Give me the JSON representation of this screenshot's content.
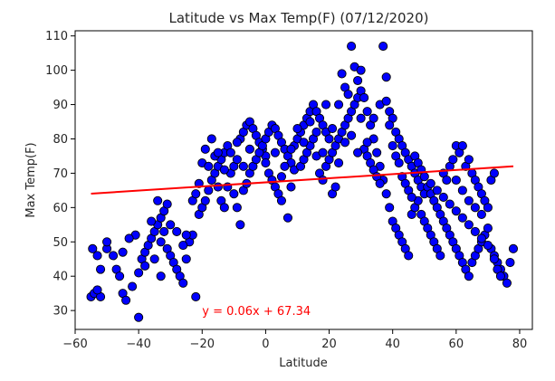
{
  "chart_data": {
    "type": "scatter",
    "title": "Latitude vs Max Temp(F) (07/12/2020)",
    "xlabel": "Latitude",
    "ylabel": "Max Temp(F)",
    "xlim": [
      -60,
      84
    ],
    "ylim": [
      24.5,
      111.5
    ],
    "xticks": [
      -60,
      -40,
      -20,
      0,
      20,
      40,
      60,
      80
    ],
    "xtick_labels": [
      "−60",
      "−40",
      "−20",
      "0",
      "20",
      "40",
      "60",
      "80"
    ],
    "yticks": [
      30,
      40,
      50,
      60,
      70,
      80,
      90,
      100,
      110
    ],
    "ytick_labels": [
      "30",
      "40",
      "50",
      "60",
      "70",
      "80",
      "90",
      "100",
      "110"
    ],
    "grid": false,
    "marker_color": "#0000ff",
    "marker_edge_color": "#000000",
    "regression": {
      "slope": 0.06,
      "intercept": 67.34,
      "x_range": [
        -55,
        78
      ],
      "color": "#ff0000",
      "label": "y = 0.06x + 67.34",
      "label_at": [
        -20,
        30
      ]
    },
    "points": [
      [
        -55,
        34
      ],
      [
        -54,
        35
      ],
      [
        -52,
        34
      ],
      [
        -53,
        36
      ],
      [
        -54.5,
        48
      ],
      [
        -53,
        46
      ],
      [
        -52,
        42
      ],
      [
        -50,
        48
      ],
      [
        -50,
        50
      ],
      [
        -48,
        46
      ],
      [
        -47,
        42
      ],
      [
        -46,
        40
      ],
      [
        -45,
        35
      ],
      [
        -44,
        33
      ],
      [
        -42,
        37
      ],
      [
        -41,
        52
      ],
      [
        -40,
        28
      ],
      [
        -40,
        41
      ],
      [
        -39,
        45
      ],
      [
        -38,
        47
      ],
      [
        -37,
        49
      ],
      [
        -36,
        51
      ],
      [
        -35,
        53
      ],
      [
        -34,
        55
      ],
      [
        -33,
        57
      ],
      [
        -32,
        59
      ],
      [
        -31,
        61
      ],
      [
        -34,
        62
      ],
      [
        -33,
        50
      ],
      [
        -32,
        53
      ],
      [
        -31,
        48
      ],
      [
        -30,
        46
      ],
      [
        -29,
        44
      ],
      [
        -28,
        42
      ],
      [
        -27,
        40
      ],
      [
        -26,
        38
      ],
      [
        -25,
        45
      ],
      [
        -24,
        50
      ],
      [
        -23,
        52
      ],
      [
        -22,
        34
      ],
      [
        -21,
        58
      ],
      [
        -20,
        60
      ],
      [
        -19,
        62
      ],
      [
        -18,
        65
      ],
      [
        -17,
        68
      ],
      [
        -16,
        70
      ],
      [
        -15,
        72
      ],
      [
        -14,
        74
      ],
      [
        -13,
        76
      ],
      [
        -12,
        78
      ],
      [
        -20,
        73
      ],
      [
        -19,
        77
      ],
      [
        -17,
        80
      ],
      [
        -16,
        75
      ],
      [
        -15,
        66
      ],
      [
        -14,
        62
      ],
      [
        -13,
        60
      ],
      [
        -12,
        66
      ],
      [
        -11,
        70
      ],
      [
        -10,
        72
      ],
      [
        -9,
        74
      ],
      [
        -8,
        80
      ],
      [
        -7,
        82
      ],
      [
        -6,
        84
      ],
      [
        -5,
        85
      ],
      [
        -4,
        83
      ],
      [
        -3,
        81
      ],
      [
        -2,
        79
      ],
      [
        -1,
        77
      ],
      [
        0,
        75
      ],
      [
        -10,
        64
      ],
      [
        -9,
        60
      ],
      [
        -8,
        55
      ],
      [
        -7,
        65
      ],
      [
        -6,
        67
      ],
      [
        -5,
        70
      ],
      [
        -4,
        72
      ],
      [
        -3,
        74
      ],
      [
        -2,
        76
      ],
      [
        -1,
        78
      ],
      [
        0,
        80
      ],
      [
        1,
        82
      ],
      [
        2,
        84
      ],
      [
        3,
        83
      ],
      [
        4,
        81
      ],
      [
        5,
        79
      ],
      [
        6,
        77
      ],
      [
        7,
        75
      ],
      [
        8,
        73
      ],
      [
        9,
        71
      ],
      [
        1,
        70
      ],
      [
        2,
        68
      ],
      [
        3,
        66
      ],
      [
        4,
        64
      ],
      [
        5,
        62
      ],
      [
        6,
        72
      ],
      [
        7,
        57
      ],
      [
        8,
        66
      ],
      [
        9,
        78
      ],
      [
        10,
        80
      ],
      [
        11,
        82
      ],
      [
        12,
        84
      ],
      [
        13,
        86
      ],
      [
        14,
        88
      ],
      [
        15,
        90
      ],
      [
        16,
        88
      ],
      [
        17,
        86
      ],
      [
        18,
        84
      ],
      [
        19,
        82
      ],
      [
        20,
        80
      ],
      [
        11,
        72
      ],
      [
        12,
        74
      ],
      [
        13,
        76
      ],
      [
        14,
        78
      ],
      [
        15,
        80
      ],
      [
        16,
        75
      ],
      [
        17,
        70
      ],
      [
        18,
        68
      ],
      [
        19,
        72
      ],
      [
        20,
        74
      ],
      [
        21,
        76
      ],
      [
        22,
        78
      ],
      [
        23,
        80
      ],
      [
        24,
        82
      ],
      [
        25,
        84
      ],
      [
        26,
        86
      ],
      [
        27,
        88
      ],
      [
        28,
        90
      ],
      [
        29,
        92
      ],
      [
        30,
        94
      ],
      [
        21,
        64
      ],
      [
        22,
        66
      ],
      [
        23,
        90
      ],
      [
        24,
        99
      ],
      [
        25,
        95
      ],
      [
        26,
        93
      ],
      [
        27,
        107
      ],
      [
        28,
        101
      ],
      [
        29,
        97
      ],
      [
        30,
        100
      ],
      [
        31,
        92
      ],
      [
        32,
        88
      ],
      [
        33,
        84
      ],
      [
        34,
        80
      ],
      [
        35,
        76
      ],
      [
        36,
        72
      ],
      [
        37,
        68
      ],
      [
        38,
        64
      ],
      [
        39,
        60
      ],
      [
        40,
        56
      ],
      [
        31,
        77
      ],
      [
        32,
        75
      ],
      [
        33,
        73
      ],
      [
        34,
        71
      ],
      [
        35,
        69
      ],
      [
        36,
        67
      ],
      [
        37,
        107
      ],
      [
        38,
        98
      ],
      [
        39,
        88
      ],
      [
        40,
        86
      ],
      [
        41,
        82
      ],
      [
        42,
        80
      ],
      [
        43,
        78
      ],
      [
        44,
        76
      ],
      [
        45,
        74
      ],
      [
        46,
        72
      ],
      [
        47,
        70
      ],
      [
        48,
        68
      ],
      [
        49,
        66
      ],
      [
        50,
        64
      ],
      [
        41,
        54
      ],
      [
        42,
        52
      ],
      [
        43,
        50
      ],
      [
        44,
        48
      ],
      [
        45,
        46
      ],
      [
        46,
        58
      ],
      [
        47,
        60
      ],
      [
        48,
        62
      ],
      [
        49,
        58
      ],
      [
        50,
        56
      ],
      [
        51,
        54
      ],
      [
        52,
        52
      ],
      [
        53,
        50
      ],
      [
        54,
        48
      ],
      [
        55,
        46
      ],
      [
        56,
        70
      ],
      [
        57,
        68
      ],
      [
        58,
        72
      ],
      [
        59,
        74
      ],
      [
        60,
        78
      ],
      [
        51,
        66
      ],
      [
        52,
        64
      ],
      [
        53,
        62
      ],
      [
        54,
        60
      ],
      [
        55,
        58
      ],
      [
        56,
        56
      ],
      [
        57,
        54
      ],
      [
        58,
        52
      ],
      [
        59,
        50
      ],
      [
        60,
        48
      ],
      [
        61,
        46
      ],
      [
        62,
        44
      ],
      [
        63,
        42
      ],
      [
        64,
        40
      ],
      [
        65,
        44
      ],
      [
        66,
        46
      ],
      [
        67,
        48
      ],
      [
        68,
        50
      ],
      [
        69,
        52
      ],
      [
        70,
        54
      ],
      [
        61,
        76
      ],
      [
        62,
        78
      ],
      [
        63,
        72
      ],
      [
        64,
        74
      ],
      [
        65,
        70
      ],
      [
        66,
        68
      ],
      [
        67,
        66
      ],
      [
        68,
        64
      ],
      [
        69,
        62
      ],
      [
        70,
        60
      ],
      [
        71,
        48
      ],
      [
        72,
        46
      ],
      [
        73,
        44
      ],
      [
        74,
        42
      ],
      [
        75,
        40
      ],
      [
        76,
        38
      ],
      [
        77,
        44
      ],
      [
        78,
        48
      ],
      [
        71,
        68
      ],
      [
        72,
        70
      ],
      [
        -45,
        47
      ],
      [
        -43,
        51
      ],
      [
        -38,
        43
      ],
      [
        -36,
        56
      ],
      [
        -35,
        45
      ],
      [
        -33,
        40
      ],
      [
        -30,
        55
      ],
      [
        -28,
        53
      ],
      [
        -26,
        49
      ],
      [
        -25,
        52
      ],
      [
        -23,
        62
      ],
      [
        -22,
        64
      ],
      [
        -21,
        67
      ],
      [
        -18,
        72
      ],
      [
        -15,
        76
      ],
      [
        -13,
        71
      ],
      [
        -11,
        76
      ],
      [
        -9,
        79
      ],
      [
        -7,
        72
      ],
      [
        -5,
        77
      ],
      [
        0,
        73
      ],
      [
        3,
        76
      ],
      [
        5,
        69
      ],
      [
        8,
        77
      ],
      [
        10,
        83
      ],
      [
        12,
        79
      ],
      [
        14,
        85
      ],
      [
        16,
        82
      ],
      [
        18,
        76
      ],
      [
        19,
        90
      ],
      [
        21,
        83
      ],
      [
        23,
        73
      ],
      [
        25,
        79
      ],
      [
        27,
        81
      ],
      [
        29,
        76
      ],
      [
        30,
        86
      ],
      [
        32,
        79
      ],
      [
        34,
        86
      ],
      [
        36,
        90
      ],
      [
        38,
        91
      ],
      [
        39,
        84
      ],
      [
        40,
        78
      ],
      [
        41,
        75
      ],
      [
        42,
        73
      ],
      [
        43,
        69
      ],
      [
        44,
        67
      ],
      [
        45,
        65
      ],
      [
        46,
        63
      ],
      [
        47,
        75
      ],
      [
        48,
        73
      ],
      [
        49,
        71
      ],
      [
        50,
        69
      ],
      [
        52,
        67
      ],
      [
        54,
        65
      ],
      [
        56,
        63
      ],
      [
        58,
        61
      ],
      [
        60,
        59
      ],
      [
        62,
        57
      ],
      [
        64,
        55
      ],
      [
        66,
        53
      ],
      [
        68,
        51
      ],
      [
        70,
        49
      ],
      [
        72,
        45
      ],
      [
        73,
        42
      ],
      [
        74,
        40
      ],
      [
        60,
        68
      ],
      [
        62,
        65
      ],
      [
        64,
        62
      ],
      [
        66,
        60
      ],
      [
        68,
        58
      ]
    ]
  }
}
